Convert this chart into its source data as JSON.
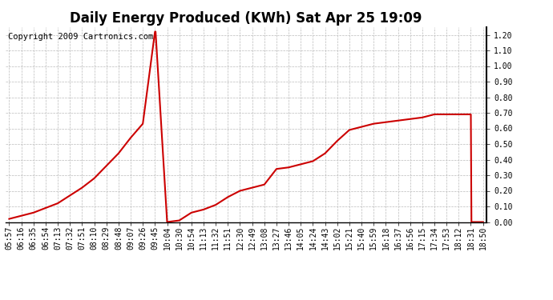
{
  "title": "Daily Energy Produced (KWh) Sat Apr 25 19:09",
  "copyright_text": "Copyright 2009 Cartronics.com",
  "line_color": "#cc0000",
  "bg_color": "#ffffff",
  "grid_color": "#bbbbbb",
  "ylim": [
    0.0,
    1.25
  ],
  "yticks": [
    0.0,
    0.1,
    0.2,
    0.3,
    0.4,
    0.5,
    0.6,
    0.7,
    0.8,
    0.9,
    1.0,
    1.1,
    1.2
  ],
  "xtick_labels": [
    "05:57",
    "06:16",
    "06:35",
    "06:54",
    "07:13",
    "07:32",
    "07:51",
    "08:10",
    "08:29",
    "08:48",
    "09:07",
    "09:26",
    "09:45",
    "10:04",
    "10:30",
    "10:54",
    "11:13",
    "11:32",
    "11:51",
    "12:30",
    "12:49",
    "13:08",
    "13:27",
    "13:46",
    "14:05",
    "14:24",
    "14:43",
    "15:02",
    "15:21",
    "15:40",
    "15:59",
    "16:18",
    "16:37",
    "16:56",
    "17:15",
    "17:34",
    "17:53",
    "18:12",
    "18:31",
    "18:50"
  ],
  "x_data": [
    0,
    1,
    2,
    3,
    4,
    5,
    6,
    7,
    8,
    9,
    10,
    11,
    12,
    12.05,
    13,
    14,
    15,
    16,
    17,
    18,
    19,
    20,
    21,
    22,
    23,
    24,
    25,
    26,
    27,
    28,
    29,
    30,
    31,
    32,
    33,
    34,
    35,
    36,
    37,
    38,
    38.05,
    39
  ],
  "y_data": [
    0.02,
    0.04,
    0.06,
    0.09,
    0.12,
    0.17,
    0.22,
    0.28,
    0.36,
    0.44,
    0.54,
    0.63,
    1.22,
    1.22,
    0.0,
    0.01,
    0.06,
    0.08,
    0.11,
    0.16,
    0.2,
    0.22,
    0.24,
    0.34,
    0.35,
    0.37,
    0.39,
    0.44,
    0.52,
    0.59,
    0.61,
    0.63,
    0.64,
    0.65,
    0.66,
    0.67,
    0.69,
    0.69,
    0.69,
    0.69,
    0.0,
    0.0
  ],
  "title_fontsize": 12,
  "tick_fontsize": 7,
  "copyright_fontsize": 7.5,
  "figwidth": 6.9,
  "figheight": 3.75,
  "dpi": 100
}
